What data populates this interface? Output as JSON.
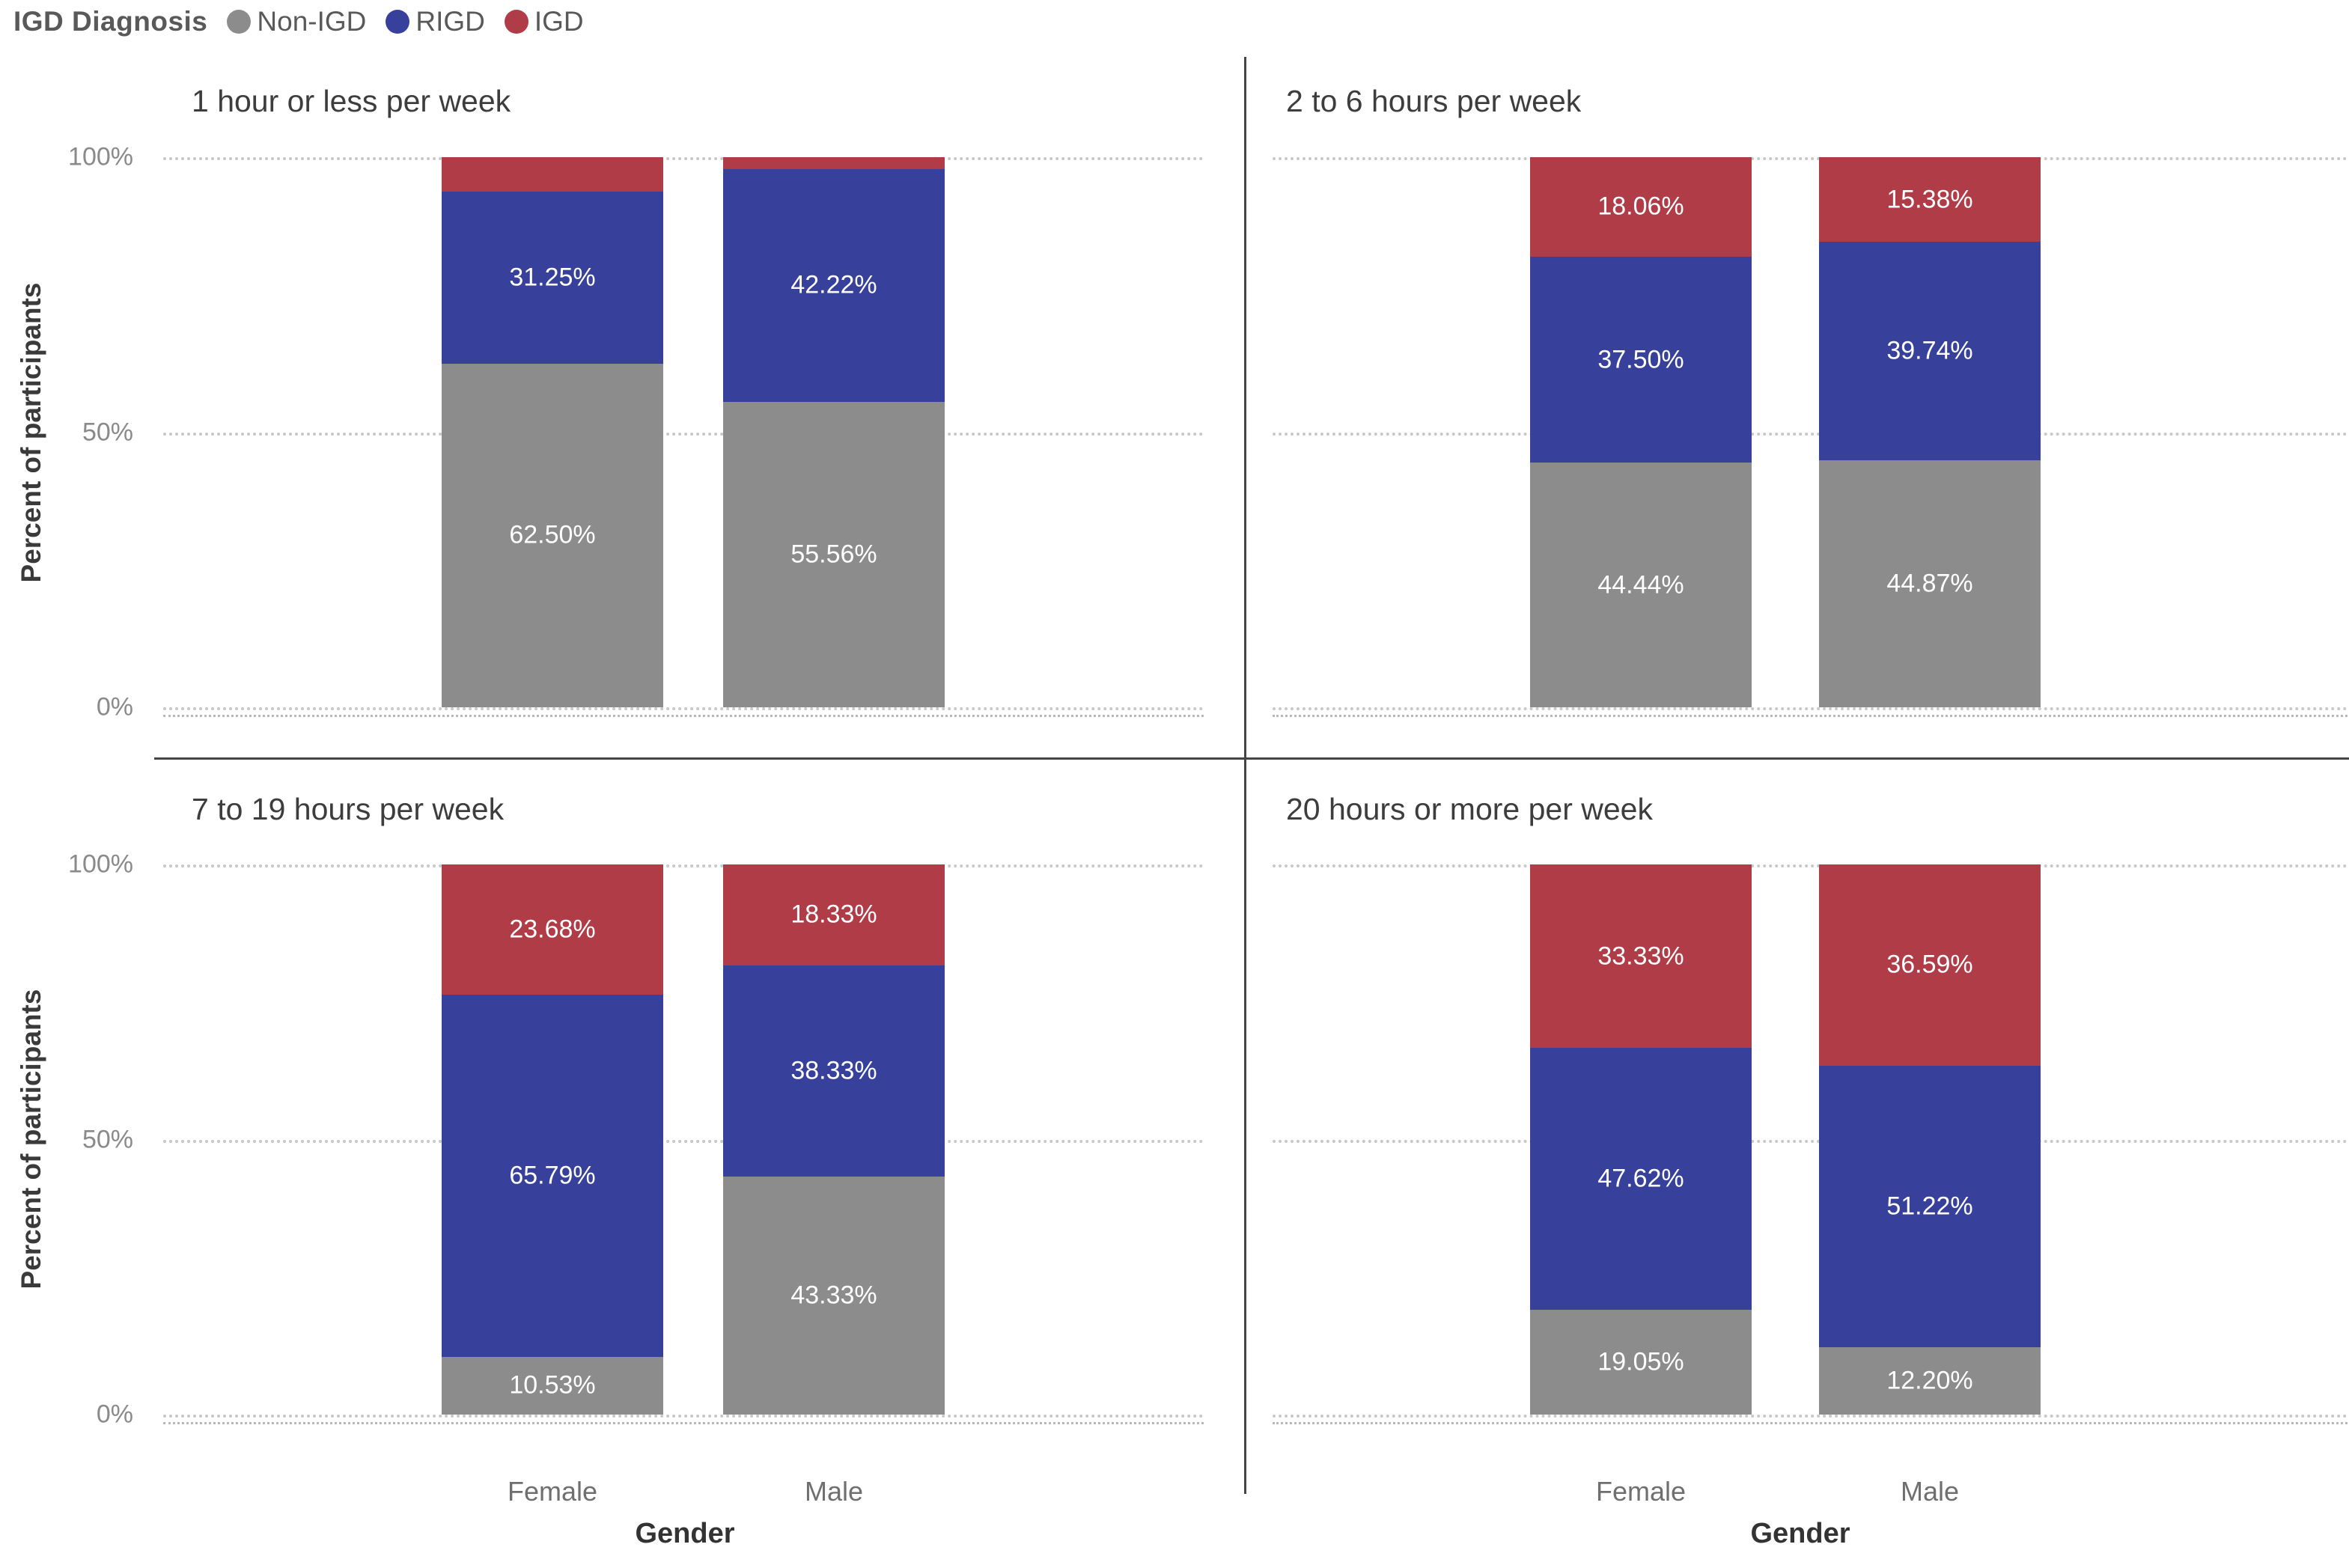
{
  "legend": {
    "title": "IGD Diagnosis",
    "items": [
      {
        "label": "Non-IGD",
        "color": "#8c8c8c"
      },
      {
        "label": "RIGD",
        "color": "#37419b"
      },
      {
        "label": "IGD",
        "color": "#b03c47"
      }
    ]
  },
  "y_axis": {
    "label": "Percent of participants",
    "ticks": [
      "100%",
      "50%",
      "0%"
    ]
  },
  "x_axis": {
    "label": "Gender",
    "categories": [
      "Female",
      "Male"
    ]
  },
  "colors": {
    "Non-IGD": "#8c8c8c",
    "RIGD": "#37419b",
    "IGD": "#b03c47"
  },
  "chart_data": {
    "type": "bar",
    "stacked": true,
    "unit": "percent",
    "ylim": [
      0,
      100
    ],
    "yticks": [
      "0%",
      "50%",
      "100%"
    ],
    "xlabel": "Gender",
    "ylabel": "Percent of participants",
    "categories": [
      "Female",
      "Male"
    ],
    "series_names": [
      "Non-IGD",
      "RIGD",
      "IGD"
    ],
    "legend_title": "IGD Diagnosis",
    "legend_position": "top-left",
    "grid": "dotted horizontal lines at 0%, 50%, 100%",
    "panels": [
      {
        "title": "1 hour or less per week",
        "bars": [
          {
            "category": "Female",
            "segments": [
              {
                "name": "Non-IGD",
                "value": 62.5,
                "label": "62.50%"
              },
              {
                "name": "RIGD",
                "value": 31.25,
                "label": "31.25%"
              },
              {
                "name": "IGD",
                "value": 6.25,
                "label": ""
              }
            ]
          },
          {
            "category": "Male",
            "segments": [
              {
                "name": "Non-IGD",
                "value": 55.56,
                "label": "55.56%"
              },
              {
                "name": "RIGD",
                "value": 42.22,
                "label": "42.22%"
              },
              {
                "name": "IGD",
                "value": 2.22,
                "label": ""
              }
            ]
          }
        ]
      },
      {
        "title": "2 to 6 hours per week",
        "bars": [
          {
            "category": "Female",
            "segments": [
              {
                "name": "Non-IGD",
                "value": 44.44,
                "label": "44.44%"
              },
              {
                "name": "RIGD",
                "value": 37.5,
                "label": "37.50%"
              },
              {
                "name": "IGD",
                "value": 18.06,
                "label": "18.06%"
              }
            ]
          },
          {
            "category": "Male",
            "segments": [
              {
                "name": "Non-IGD",
                "value": 44.87,
                "label": "44.87%"
              },
              {
                "name": "RIGD",
                "value": 39.74,
                "label": "39.74%"
              },
              {
                "name": "IGD",
                "value": 15.38,
                "label": "15.38%"
              }
            ]
          }
        ]
      },
      {
        "title": "7 to 19 hours per week",
        "bars": [
          {
            "category": "Female",
            "segments": [
              {
                "name": "Non-IGD",
                "value": 10.53,
                "label": "10.53%"
              },
              {
                "name": "RIGD",
                "value": 65.79,
                "label": "65.79%"
              },
              {
                "name": "IGD",
                "value": 23.68,
                "label": "23.68%"
              }
            ]
          },
          {
            "category": "Male",
            "segments": [
              {
                "name": "Non-IGD",
                "value": 43.33,
                "label": "43.33%"
              },
              {
                "name": "RIGD",
                "value": 38.33,
                "label": "38.33%"
              },
              {
                "name": "IGD",
                "value": 18.33,
                "label": "18.33%"
              }
            ]
          }
        ]
      },
      {
        "title": "20 hours or more per week",
        "bars": [
          {
            "category": "Female",
            "segments": [
              {
                "name": "Non-IGD",
                "value": 19.05,
                "label": "19.05%"
              },
              {
                "name": "RIGD",
                "value": 47.62,
                "label": "47.62%"
              },
              {
                "name": "IGD",
                "value": 33.33,
                "label": "33.33%"
              }
            ]
          },
          {
            "category": "Male",
            "segments": [
              {
                "name": "Non-IGD",
                "value": 12.2,
                "label": "12.20%"
              },
              {
                "name": "RIGD",
                "value": 51.22,
                "label": "51.22%"
              },
              {
                "name": "IGD",
                "value": 36.59,
                "label": "36.59%"
              }
            ]
          }
        ]
      }
    ]
  }
}
